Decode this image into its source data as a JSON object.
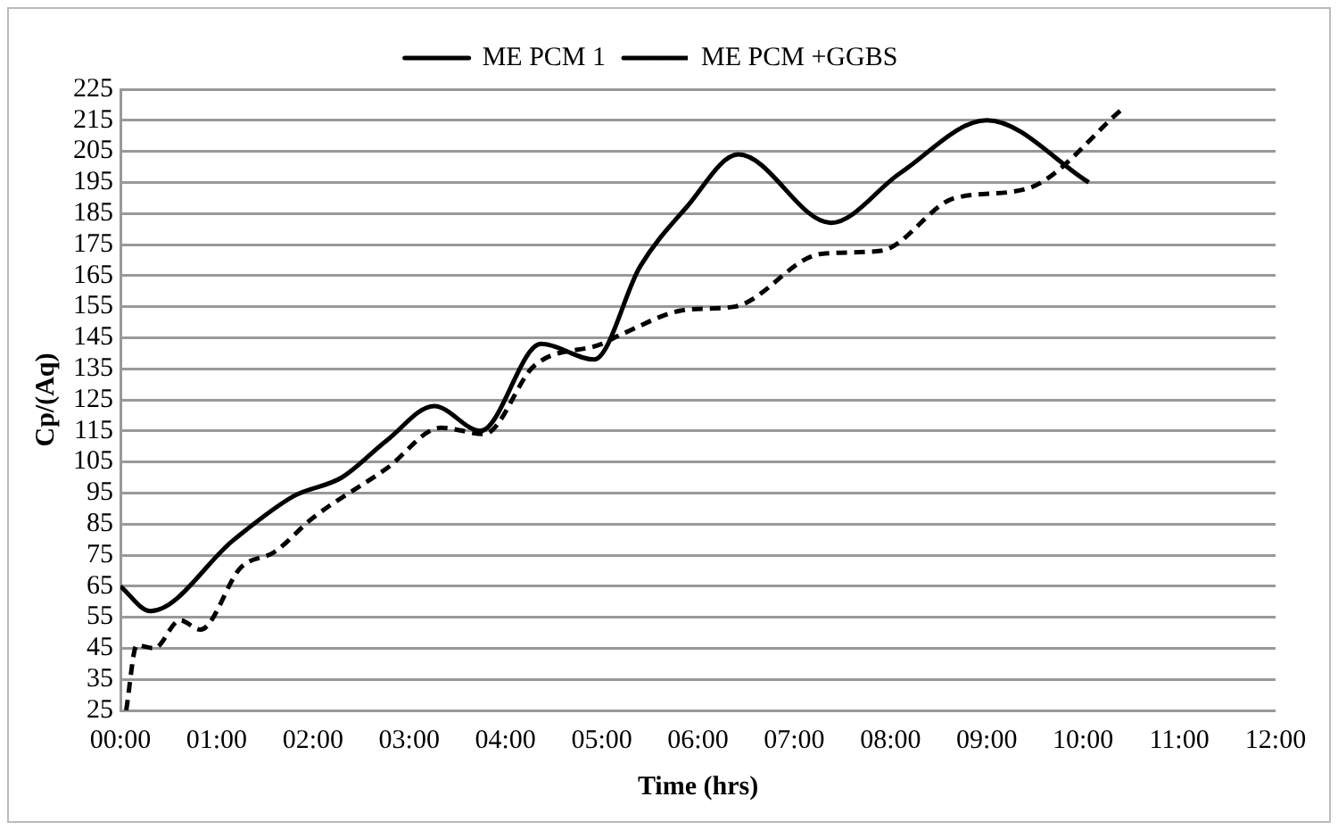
{
  "chart_data": {
    "type": "line",
    "xlabel": "Time (hrs)",
    "ylabel": "Cp/(Aq)",
    "legend": "top",
    "grid": "y",
    "marker": "none",
    "xlim": [
      0,
      12
    ],
    "xticks": [
      {
        "value": 0,
        "label": "00:00"
      },
      {
        "value": 1,
        "label": "01:00"
      },
      {
        "value": 2,
        "label": "02:00"
      },
      {
        "value": 3,
        "label": "03:00"
      },
      {
        "value": 4,
        "label": "04:00"
      },
      {
        "value": 5,
        "label": "05:00"
      },
      {
        "value": 6,
        "label": "06:00"
      },
      {
        "value": 7,
        "label": "07:00"
      },
      {
        "value": 8,
        "label": "08:00"
      },
      {
        "value": 9,
        "label": "09:00"
      },
      {
        "value": 10,
        "label": "10:00"
      },
      {
        "value": 11,
        "label": "11:00"
      },
      {
        "value": 12,
        "label": "12:00"
      }
    ],
    "ylim": [
      25,
      225
    ],
    "yticks": [
      25,
      35,
      45,
      55,
      65,
      75,
      85,
      95,
      105,
      115,
      125,
      135,
      145,
      155,
      165,
      175,
      185,
      195,
      205,
      215,
      225
    ],
    "series": [
      {
        "name": "ME PCM 1",
        "color": "#000000",
        "line_style": "solid",
        "x": [
          0,
          0.31,
          1.18,
          1.8,
          2.3,
          2.77,
          3.26,
          3.74,
          4.37,
          4.92,
          5.4,
          5.88,
          6.42,
          7.38,
          8.1,
          9.0,
          10.06
        ],
        "values": [
          65,
          57,
          80,
          94,
          100,
          112,
          123,
          115,
          143,
          138,
          168,
          187,
          204,
          182,
          198,
          215,
          195
        ]
      },
      {
        "name": "ME PCM +GGBS",
        "color": "#000000",
        "line_style": "dashed",
        "x": [
          0.06,
          0.17,
          0.35,
          0.62,
          0.83,
          1.25,
          1.6,
          2.0,
          2.77,
          3.33,
          3.78,
          4.3,
          5.0,
          5.2,
          5.88,
          6.38,
          7.28,
          7.9,
          8.67,
          9.42,
          10.42
        ],
        "values": [
          25,
          46,
          45,
          54,
          51,
          71,
          76,
          87,
          103,
          116,
          114,
          136,
          143,
          146,
          154,
          155,
          172,
          173,
          190,
          193,
          219
        ]
      }
    ]
  }
}
